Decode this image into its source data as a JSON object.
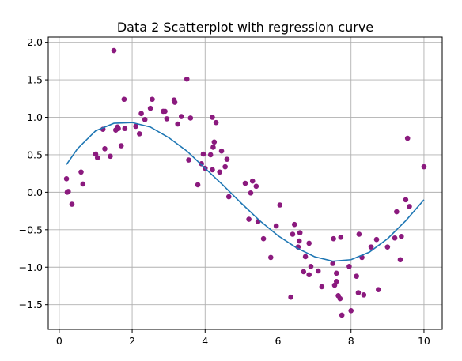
{
  "chart_data": {
    "type": "scatter",
    "title": "Data 2 Scatterplot with regression curve",
    "xlabel": "",
    "ylabel": "",
    "xlim": [
      -0.3,
      10.5
    ],
    "ylim": [
      -1.83,
      2.07
    ],
    "x_ticks": [
      0,
      2,
      4,
      6,
      8,
      10
    ],
    "x_tick_labels": [
      "0",
      "2",
      "4",
      "6",
      "8",
      "10"
    ],
    "y_ticks": [
      -1.5,
      -1.0,
      -0.5,
      0.0,
      0.5,
      1.0,
      1.5,
      2.0
    ],
    "y_tick_labels": [
      "−1.5",
      "−1.0",
      "−0.5",
      "0.0",
      "0.5",
      "1.0",
      "1.5",
      "2.0"
    ],
    "grid": true,
    "colors": {
      "points": "#8b1a7e",
      "curve": "#1f77b4"
    },
    "points": [
      [
        0.2,
        0.18
      ],
      [
        0.22,
        0.0
      ],
      [
        0.25,
        0.01
      ],
      [
        0.35,
        -0.16
      ],
      [
        0.6,
        0.27
      ],
      [
        0.65,
        0.11
      ],
      [
        1.0,
        0.51
      ],
      [
        1.05,
        0.46
      ],
      [
        1.2,
        0.84
      ],
      [
        1.25,
        0.58
      ],
      [
        1.4,
        0.48
      ],
      [
        1.5,
        1.89
      ],
      [
        1.55,
        0.83
      ],
      [
        1.6,
        0.87
      ],
      [
        1.62,
        0.85
      ],
      [
        1.7,
        0.62
      ],
      [
        1.78,
        1.24
      ],
      [
        1.8,
        0.85
      ],
      [
        2.1,
        0.88
      ],
      [
        2.2,
        0.78
      ],
      [
        2.25,
        1.05
      ],
      [
        2.35,
        0.97
      ],
      [
        2.5,
        1.12
      ],
      [
        2.55,
        1.24
      ],
      [
        2.85,
        1.08
      ],
      [
        2.9,
        1.08
      ],
      [
        2.95,
        0.98
      ],
      [
        3.15,
        1.23
      ],
      [
        3.17,
        1.2
      ],
      [
        3.25,
        0.91
      ],
      [
        3.35,
        1.01
      ],
      [
        3.5,
        1.51
      ],
      [
        3.55,
        0.43
      ],
      [
        3.6,
        0.99
      ],
      [
        3.8,
        0.1
      ],
      [
        3.9,
        0.38
      ],
      [
        3.95,
        0.51
      ],
      [
        4.0,
        0.32
      ],
      [
        4.15,
        0.5
      ],
      [
        4.2,
        0.3
      ],
      [
        4.2,
        1.0
      ],
      [
        4.22,
        0.6
      ],
      [
        4.25,
        0.67
      ],
      [
        4.3,
        0.93
      ],
      [
        4.4,
        0.27
      ],
      [
        4.45,
        0.55
      ],
      [
        4.55,
        0.34
      ],
      [
        4.6,
        0.44
      ],
      [
        4.65,
        -0.06
      ],
      [
        5.1,
        0.12
      ],
      [
        5.2,
        -0.36
      ],
      [
        5.25,
        -0.01
      ],
      [
        5.3,
        0.15
      ],
      [
        5.4,
        0.08
      ],
      [
        5.45,
        -0.39
      ],
      [
        5.6,
        -0.62
      ],
      [
        5.8,
        -0.87
      ],
      [
        5.95,
        -0.45
      ],
      [
        6.05,
        -0.17
      ],
      [
        6.35,
        -1.4
      ],
      [
        6.4,
        -0.56
      ],
      [
        6.45,
        -0.43
      ],
      [
        6.55,
        -0.73
      ],
      [
        6.58,
        -0.65
      ],
      [
        6.6,
        -0.54
      ],
      [
        6.7,
        -1.06
      ],
      [
        6.75,
        -0.86
      ],
      [
        6.85,
        -1.1
      ],
      [
        6.85,
        -0.68
      ],
      [
        6.9,
        -0.99
      ],
      [
        7.1,
        -1.05
      ],
      [
        7.2,
        -1.26
      ],
      [
        7.5,
        -0.95
      ],
      [
        7.52,
        -0.62
      ],
      [
        7.55,
        -1.24
      ],
      [
        7.6,
        -1.19
      ],
      [
        7.6,
        -1.08
      ],
      [
        7.65,
        -1.38
      ],
      [
        7.7,
        -1.42
      ],
      [
        7.72,
        -0.6
      ],
      [
        7.75,
        -1.64
      ],
      [
        7.95,
        -0.99
      ],
      [
        8.0,
        -1.58
      ],
      [
        8.15,
        -1.12
      ],
      [
        8.2,
        -1.34
      ],
      [
        8.22,
        -0.56
      ],
      [
        8.3,
        -0.87
      ],
      [
        8.35,
        -1.37
      ],
      [
        8.55,
        -0.73
      ],
      [
        8.7,
        -0.63
      ],
      [
        8.75,
        -1.3
      ],
      [
        9.0,
        -0.73
      ],
      [
        9.2,
        -0.61
      ],
      [
        9.25,
        -0.26
      ],
      [
        9.35,
        -0.9
      ],
      [
        9.38,
        -0.59
      ],
      [
        9.5,
        -0.1
      ],
      [
        9.55,
        0.72
      ],
      [
        9.6,
        -0.19
      ],
      [
        10.0,
        0.34
      ]
    ],
    "regression_curve": {
      "x": [
        0.2,
        0.5,
        1.0,
        1.5,
        2.0,
        2.5,
        3.0,
        3.5,
        4.0,
        4.5,
        5.0,
        5.5,
        6.0,
        6.5,
        7.0,
        7.5,
        8.0,
        8.5,
        9.0,
        9.5,
        10.0
      ],
      "y": [
        0.37,
        0.58,
        0.82,
        0.92,
        0.93,
        0.87,
        0.73,
        0.55,
        0.32,
        0.09,
        -0.15,
        -0.38,
        -0.58,
        -0.74,
        -0.86,
        -0.92,
        -0.9,
        -0.8,
        -0.62,
        -0.38,
        -0.1
      ]
    }
  }
}
